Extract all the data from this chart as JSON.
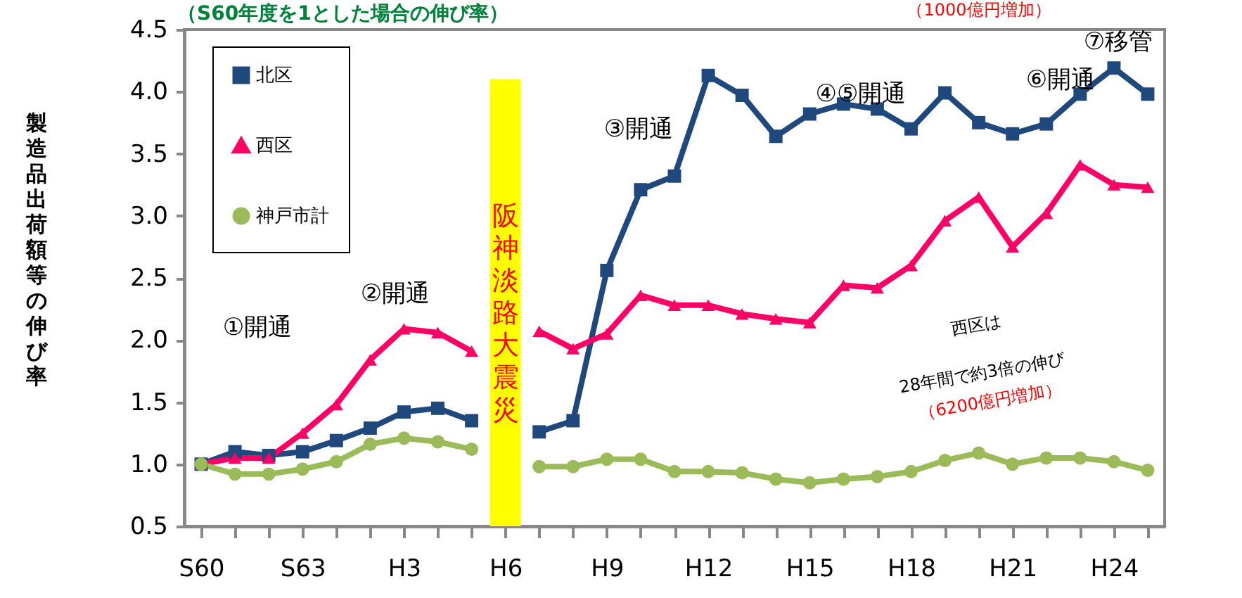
{
  "chart_data": {
    "type": "line",
    "subtitle": "（S60年度を1とした場合の伸び率）",
    "ylabel": "製造品出荷額等の伸び率",
    "categories": [
      "S60",
      null,
      null,
      "S63",
      null,
      null,
      "H3",
      null,
      null,
      "H6",
      null,
      null,
      "H9",
      null,
      null,
      "H12",
      null,
      null,
      "H15",
      null,
      null,
      "H18",
      null,
      null,
      "H21",
      null,
      null,
      "H24",
      null
    ],
    "series": [
      {
        "name": "北区",
        "color": "#1f497d",
        "marker": "square",
        "values": [
          1.0,
          1.1,
          1.07,
          1.1,
          1.19,
          1.29,
          1.42,
          1.45,
          1.35,
          null,
          1.26,
          1.35,
          2.56,
          3.21,
          3.32,
          4.13,
          3.97,
          3.64,
          3.82,
          3.9,
          3.86,
          3.7,
          3.99,
          3.75,
          3.66,
          3.74,
          3.98,
          4.19,
          3.98
        ]
      },
      {
        "name": "西区",
        "color": "#ff0066",
        "marker": "triangle",
        "values": [
          1.0,
          1.05,
          1.05,
          1.25,
          1.48,
          1.84,
          2.09,
          2.06,
          1.91,
          null,
          2.07,
          1.93,
          2.05,
          2.36,
          2.28,
          2.28,
          2.21,
          2.17,
          2.14,
          2.44,
          2.42,
          2.6,
          2.96,
          3.15,
          2.75,
          3.02,
          3.41,
          3.25,
          3.23
        ]
      },
      {
        "name": "神戸市計",
        "color": "#9bbb59",
        "marker": "circle",
        "values": [
          1.0,
          0.92,
          0.92,
          0.96,
          1.02,
          1.16,
          1.21,
          1.18,
          1.12,
          null,
          0.98,
          0.98,
          1.04,
          1.04,
          0.94,
          0.94,
          0.93,
          0.88,
          0.85,
          0.88,
          0.9,
          0.94,
          1.03,
          1.09,
          1.0,
          1.05,
          1.05,
          1.02,
          0.95
        ]
      }
    ],
    "ylim": [
      0.5,
      4.5
    ],
    "yticks": [
      {
        "value": 0.5,
        "label": "0.5"
      },
      {
        "value": 1,
        "label": "1.0"
      },
      {
        "value": 1.5,
        "label": "1.5"
      },
      {
        "value": 2,
        "label": "2.0"
      },
      {
        "value": 2.5,
        "label": "2.5"
      },
      {
        "value": 3,
        "label": "3.0"
      },
      {
        "value": 3.5,
        "label": "3.5"
      },
      {
        "value": 4,
        "label": "4.0"
      },
      {
        "value": 4.5,
        "label": "4.5"
      }
    ],
    "ref_lines": [
      {
        "axis": "x",
        "value": "H6",
        "label": "阪神淡路大震災",
        "color": "#ffff00"
      }
    ],
    "annotations": [
      "①開通",
      "②開通",
      "③開通",
      "④⑤開通",
      "⑥開通",
      "⑦移管",
      "西区は",
      "28年間で約3倍の伸び",
      "（6200億円増加）",
      "（1000億円増加）"
    ],
    "legend": "top left",
    "marker": "square",
    "line_style": "solid",
    "grid": false
  }
}
